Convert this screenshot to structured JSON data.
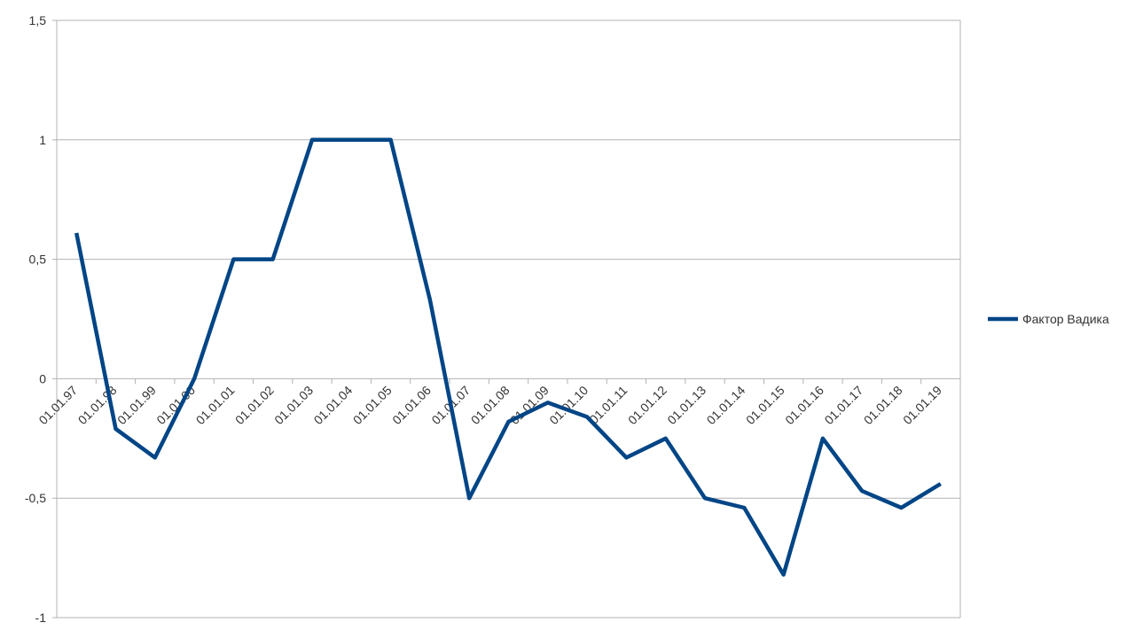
{
  "chart_data": {
    "type": "line",
    "title": "",
    "xlabel": "",
    "ylabel": "",
    "categories": [
      "01.01.97",
      "01.01.98",
      "01.01.99",
      "01.01.00",
      "01.01.01",
      "01.01.02",
      "01.01.03",
      "01.01.04",
      "01.01.05",
      "01.01.06",
      "01.01.07",
      "01.01.08",
      "01.01.09",
      "01.01.10",
      "01.01.11",
      "01.01.12",
      "01.01.13",
      "01.01.14",
      "01.01.15",
      "01.01.16",
      "01.01.17",
      "01.01.18",
      "01.01.19"
    ],
    "series": [
      {
        "name": "Фактор Вадика",
        "color": "#004586",
        "values": [
          0.61,
          -0.21,
          -0.33,
          0.0,
          0.5,
          0.5,
          1.0,
          1.0,
          1.0,
          0.33,
          -0.5,
          -0.18,
          -0.1,
          -0.16,
          -0.33,
          -0.25,
          -0.5,
          -0.54,
          -0.82,
          -0.25,
          -0.47,
          -0.54,
          -0.44
        ]
      }
    ],
    "ylim": [
      -1,
      1.5
    ],
    "yticks": [
      -1,
      -0.5,
      0,
      0.5,
      1,
      1.5
    ],
    "ytick_labels": [
      "-1",
      "-0,5",
      "0",
      "0,5",
      "1",
      "1,5"
    ],
    "grid": true,
    "legend": "right"
  }
}
